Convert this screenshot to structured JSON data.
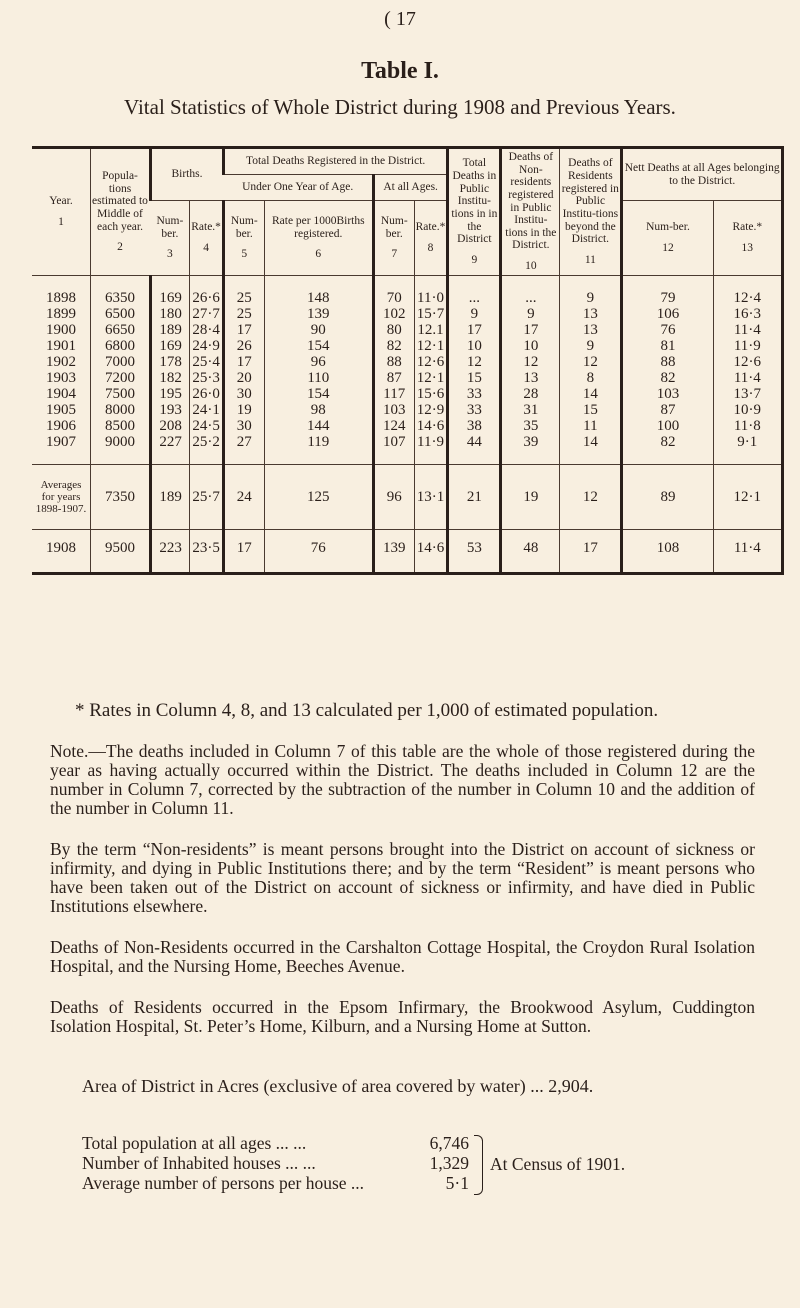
{
  "page_number": "( 17",
  "table_name": "Table I.",
  "subtitle": "Vital Statistics of Whole District during 1908 and Previous Years.",
  "headers": {
    "year": "Year.",
    "year_no": "1",
    "pop": "Popula-tions estimated to Middle of each year.",
    "pop_no": "2",
    "births": "Births.",
    "births_num": "Num-ber.",
    "births_num_no": "3",
    "births_rate": "Rate.*",
    "births_rate_no": "4",
    "total_deaths": "Total Deaths Registered in the District.",
    "under_one": "Under One Year of Age.",
    "u1_num": "Num-ber.",
    "u1_num_no": "5",
    "u1_rate": "Rate per 1000Births registered.",
    "u1_rate_no": "6",
    "all_ages": "At all Ages.",
    "aa_num": "Num-ber.",
    "aa_num_no": "7",
    "aa_rate": "Rate.*",
    "aa_rate_no": "8",
    "c9": "Total Deaths in Public Institu-tions in in the District",
    "c9_no": "9",
    "c10": "Deaths of Non-residents registered in Public Institu-tions in the District.",
    "c10_no": "10",
    "c11": "Deaths of Residents registered in Public Institu-tions beyond the District.",
    "c11_no": "11",
    "nett": "Nett Deaths at all Ages belonging to the District.",
    "nett_num": "Num-ber.",
    "nett_num_no": "12",
    "nett_rate": "Rate.*",
    "nett_rate_no": "13"
  },
  "rows": [
    [
      "1898",
      "6350",
      "169",
      "26·6",
      "25",
      "148",
      "70",
      "11·0",
      "...",
      "...",
      "9",
      "79",
      "12·4"
    ],
    [
      "1899",
      "6500",
      "180",
      "27·7",
      "25",
      "139",
      "102",
      "15·7",
      "9",
      "9",
      "13",
      "106",
      "16·3"
    ],
    [
      "1900",
      "6650",
      "189",
      "28·4",
      "17",
      "90",
      "80",
      "12.1",
      "17",
      "17",
      "13",
      "76",
      "11·4"
    ],
    [
      "1901",
      "6800",
      "169",
      "24·9",
      "26",
      "154",
      "82",
      "12·1",
      "10",
      "10",
      "9",
      "81",
      "11·9"
    ],
    [
      "1902",
      "7000",
      "178",
      "25·4",
      "17",
      "96",
      "88",
      "12·6",
      "12",
      "12",
      "12",
      "88",
      "12·6"
    ],
    [
      "1903",
      "7200",
      "182",
      "25·3",
      "20",
      "110",
      "87",
      "12·1",
      "15",
      "13",
      "8",
      "82",
      "11·4"
    ],
    [
      "1904",
      "7500",
      "195",
      "26·0",
      "30",
      "154",
      "117",
      "15·6",
      "33",
      "28",
      "14",
      "103",
      "13·7"
    ],
    [
      "1905",
      "8000",
      "193",
      "24·1",
      "19",
      "98",
      "103",
      "12·9",
      "33",
      "31",
      "15",
      "87",
      "10·9"
    ],
    [
      "1906",
      "8500",
      "208",
      "24·5",
      "30",
      "144",
      "124",
      "14·6",
      "38",
      "35",
      "11",
      "100",
      "11·8"
    ],
    [
      "1907",
      "9000",
      "227",
      "25·2",
      "27",
      "119",
      "107",
      "11·9",
      "44",
      "39",
      "14",
      "82",
      "9·1"
    ]
  ],
  "averages": [
    "Averages for years 1898-1907.",
    "7350",
    "189",
    "25·7",
    "24",
    "125",
    "96",
    "13·1",
    "21",
    "19",
    "12",
    "89",
    "12·1"
  ],
  "current": [
    "1908",
    "9500",
    "223",
    "23·5",
    "17",
    "76",
    "139",
    "14·6",
    "53",
    "48",
    "17",
    "108",
    "11·4"
  ],
  "footnote": "* Rates in Column 4, 8, and 13 calculated per 1,000 of estimated population.",
  "paragraphs": [
    "Note.—The deaths included in Column 7 of this table are the whole of those registered during the year as having actually occurred within the District. The deaths included in Column 12 are the number in Column 7, corrected by the subtraction of the number in Column 10 and the addition of the number in Column 11.",
    "By the term “Non-residents” is meant persons brought into the District on account of sickness or infirmity, and dying in Public Institutions there; and by the term “Resident” is meant persons who have been taken out of the District on account of sickness or infirmity, and have died in Public Institutions elsewhere.",
    "Deaths of Non-Residents occurred in the Carshalton Cottage Hospital, the Croydon Rural Isolation Hospital, and the Nursing Home, Beeches Avenue.",
    "Deaths of Residents occurred in the Epsom Infirmary, the Brookwood Asylum, Cuddington Isolation Hospital, St. Peter’s Home, Kilburn, and a Nursing Home at Sutton."
  ],
  "area": "Area of District in Acres (exclusive of area covered by water) ... 2,904.",
  "totals": [
    {
      "label": "Total population at all ages ... ...",
      "value": "6,746"
    },
    {
      "label": "Number of Inhabited houses ... ...",
      "value": "1,329"
    },
    {
      "label": "Average number of persons per house ...",
      "value": "5·1"
    }
  ],
  "census": "At Census of 1901."
}
